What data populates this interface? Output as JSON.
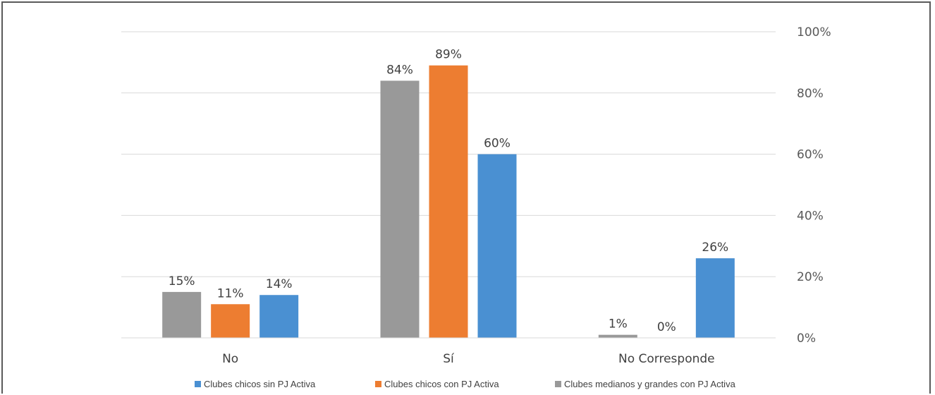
{
  "chart_data": {
    "type": "bar",
    "categories": [
      "No",
      "Sí",
      "No Corresponde"
    ],
    "series": [
      {
        "name": "Clubes medianos y grandes con PJ Activa",
        "values": [
          15,
          84,
          1
        ],
        "labels": [
          "15%",
          "84%",
          "1%"
        ],
        "color": "#999999"
      },
      {
        "name": "Clubes chicos con PJ Activa",
        "values": [
          11,
          89,
          0
        ],
        "labels": [
          "11%",
          "89%",
          "0%"
        ],
        "color": "#ED7D31"
      },
      {
        "name": "Clubes chicos sin PJ Activa",
        "values": [
          14,
          60,
          26
        ],
        "labels": [
          "14%",
          "60%",
          "26%"
        ],
        "color": "#4A90D2"
      }
    ],
    "legend_order": [
      2,
      1,
      0
    ],
    "yticks": [
      "0%",
      "20%",
      "40%",
      "60%",
      "80%",
      "100%"
    ],
    "ylim": [
      0,
      100
    ],
    "y_axis_side": "right",
    "grid": true,
    "legend_position": "bottom"
  }
}
